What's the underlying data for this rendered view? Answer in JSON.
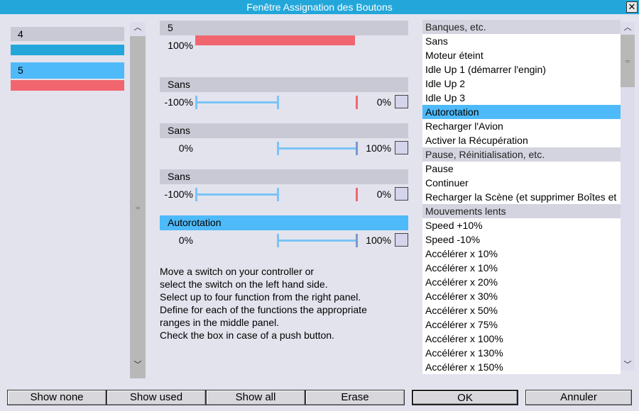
{
  "window": {
    "title": "Fenêtre Assignation des Boutons",
    "close_glyph": "✕"
  },
  "switches": [
    {
      "label": "4",
      "bar_color": "#23a7da",
      "label_bg": "#c9c9d6",
      "selected": false
    },
    {
      "label": "5",
      "bar_color": "#f1666e",
      "label_bg": "#4fbaf9",
      "selected": true
    }
  ],
  "middle": {
    "main": {
      "header": "5",
      "value_label": "100%",
      "level": 1.0
    },
    "functions": [
      {
        "header": "Sans",
        "active": false,
        "min_label": "-100%",
        "max_label": "0%",
        "min": -100,
        "max": 0
      },
      {
        "header": "Sans",
        "active": false,
        "min_label": "0%",
        "max_label": "100%",
        "min": 0,
        "max": 100
      },
      {
        "header": "Sans",
        "active": false,
        "min_label": "-100%",
        "max_label": "0%",
        "min": -100,
        "max": 0
      },
      {
        "header": "Autorotation",
        "active": true,
        "min_label": "0%",
        "max_label": "100%",
        "min": 0,
        "max": 100
      }
    ]
  },
  "instructions": [
    "Move a switch on your controller or",
    "select the switch on the left hand side.",
    "Select up to four function from the right panel.",
    "Define for each of the functions the appropriate",
    "ranges in the middle panel.",
    "Check the box in case of a push button."
  ],
  "function_list": [
    {
      "label": "Banques, etc.",
      "type": "group"
    },
    {
      "label": "Sans",
      "type": "item"
    },
    {
      "label": "Moteur éteint",
      "type": "item"
    },
    {
      "label": "Idle Up 1 (démarrer l'engin)",
      "type": "item"
    },
    {
      "label": "Idle Up 2",
      "type": "item"
    },
    {
      "label": "Idle Up 3",
      "type": "item"
    },
    {
      "label": "Autorotation",
      "type": "selected"
    },
    {
      "label": "Recharger l'Avion",
      "type": "item"
    },
    {
      "label": "Activer la Récupération",
      "type": "item"
    },
    {
      "label": "Pause, Réinitialisation, etc.",
      "type": "group"
    },
    {
      "label": "Pause",
      "type": "item"
    },
    {
      "label": "Continuer",
      "type": "item"
    },
    {
      "label": "Recharger la Scène (et supprimer Boîtes et",
      "type": "item"
    },
    {
      "label": "Mouvements lents",
      "type": "group"
    },
    {
      "label": "Speed +10%",
      "type": "item"
    },
    {
      "label": "Speed -10%",
      "type": "item"
    },
    {
      "label": "Accélérer x 10%",
      "type": "item"
    },
    {
      "label": "Accélérer x 10%",
      "type": "item"
    },
    {
      "label": "Accélérer x 20%",
      "type": "item"
    },
    {
      "label": "Accélérer x 30%",
      "type": "item"
    },
    {
      "label": "Accélérer x 50%",
      "type": "item"
    },
    {
      "label": "Accélérer x 75%",
      "type": "item"
    },
    {
      "label": "Accélérer x 100%",
      "type": "item"
    },
    {
      "label": "Accélérer x 130%",
      "type": "item"
    },
    {
      "label": "Accélérer x 150%",
      "type": "item"
    }
  ],
  "buttons": {
    "show_none": "Show none",
    "show_used": "Show used",
    "show_all": "Show all",
    "erase": "Erase",
    "ok": "OK",
    "cancel": "Annuler"
  },
  "scroll": {
    "up_glyph": "︿",
    "down_glyph": "﹀"
  },
  "colors": {
    "accent": "#23a7da",
    "selection": "#4fbaf9",
    "red": "#f1666e",
    "slider": "#7ac4f5"
  }
}
